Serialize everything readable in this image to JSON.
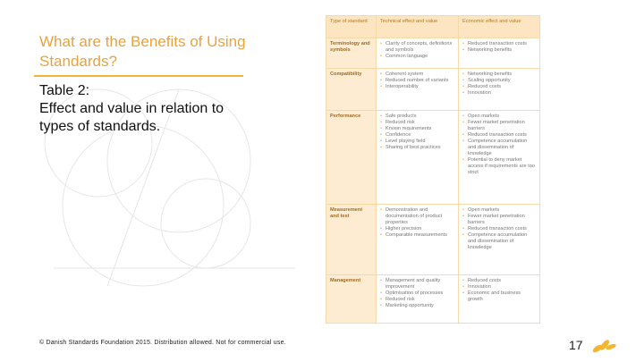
{
  "slide": {
    "title": "What are the Benefits of Using Standards?",
    "subtitle_label": "Table 2:",
    "subtitle": "Effect and value in relation to types of standards.",
    "footer": "© Danish Standards Foundation 2015. Distribution allowed. Not for commercial use.",
    "page_number": "17"
  },
  "table": {
    "header": [
      "Type of standard",
      "Technical effect and value",
      "Economic effect and value"
    ],
    "rows": [
      {
        "type": "Terminology and symbols",
        "technical": [
          "Clarity of concepts, definitions and symbols",
          "Common language"
        ],
        "economic": [
          "Reduced transaction costs",
          "Networking benefits"
        ]
      },
      {
        "type": "Compatibility",
        "technical": [
          "Coherent system",
          "Reduced number of variants",
          "Interoperability"
        ],
        "economic": [
          "Networking benefits",
          "Scaling opportunity",
          "Reduced costs",
          "Innovation"
        ]
      },
      {
        "type": "Performance",
        "technical": [
          "Safe products",
          "Reduced risk",
          "Known requirements",
          "Confidence",
          "Level playing field",
          "Sharing of best practices"
        ],
        "economic": [
          "Open markets",
          "Fewer market penetration barriers",
          "Reduced transaction costs",
          "Competence accumulation and dissemination of knowledge",
          "Potential to deny market access if requirements are too strict"
        ]
      },
      {
        "type": "Measurement and test",
        "technical": [
          "Demonstration and documentation of product properties",
          "Higher precision",
          "Comparable measurements"
        ],
        "economic": [
          "Open markets",
          "Fewer market penetration barriers",
          "Reduced transaction costs",
          "Competence accumulation and dissemination of knowledge"
        ]
      },
      {
        "type": "Management",
        "technical": [
          "Management and quality improvement",
          "Optimisation of processes",
          "Reduced risk",
          "Marketing opportunity"
        ],
        "economic": [
          "Reduced costs",
          "Innovation",
          "Economic and business growth"
        ]
      }
    ]
  }
}
